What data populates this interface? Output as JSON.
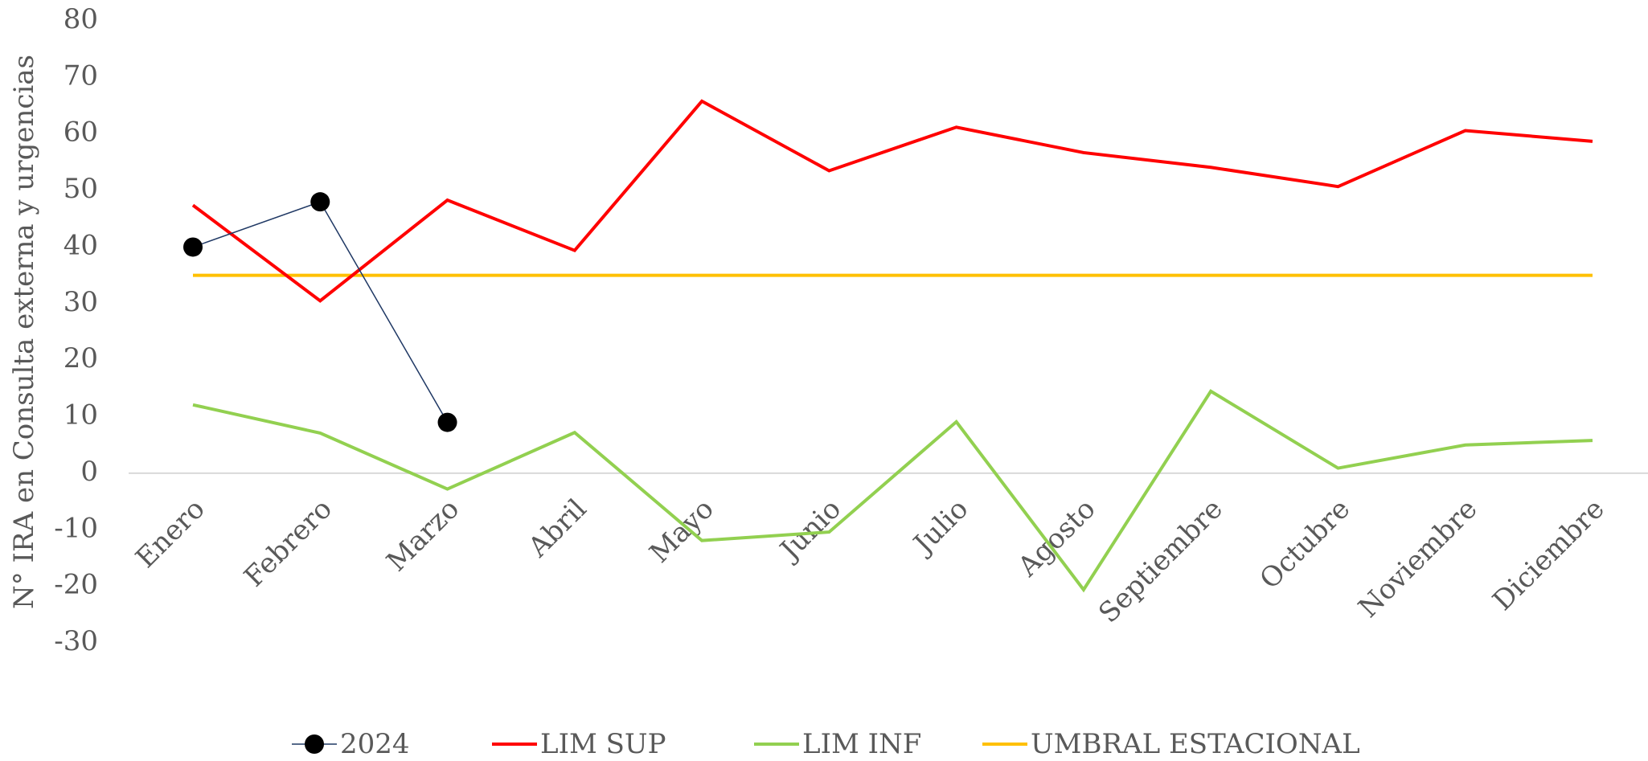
{
  "chart_data": {
    "type": "line",
    "y_axis_label": "N° IRA en Consulta externa y urgencias",
    "categories": [
      "Enero",
      "Febrero",
      "Marzo",
      "Abril",
      "Mayo",
      "Junio",
      "Julio",
      "Agosto",
      "Septiembre",
      "Octubre",
      "Noviembre",
      "Diciembre"
    ],
    "series": [
      {
        "name": "2024",
        "color": "#1f3864",
        "marker_color": "#000000",
        "values": [
          40,
          48,
          9,
          null,
          null,
          null,
          null,
          null,
          null,
          null,
          null,
          null
        ]
      },
      {
        "name": "LIM SUP",
        "color": "#ff0000",
        "values": [
          47.4,
          30.5,
          48.3,
          39.4,
          65.8,
          53.5,
          61.2,
          56.7,
          54.1,
          50.7,
          60.6,
          58.7
        ]
      },
      {
        "name": "LIM INF",
        "color": "#92d050",
        "values": [
          12.1,
          7.1,
          -2.8,
          7.2,
          -11.9,
          -10.4,
          9.1,
          -20.6,
          14.5,
          0.9,
          5.0,
          5.8
        ]
      },
      {
        "name": "UMBRAL ESTACIONAL",
        "color": "#ffc000",
        "values": [
          35,
          35,
          35,
          35,
          35,
          35,
          35,
          35,
          35,
          35,
          35,
          35
        ]
      }
    ],
    "ylim": [
      -30,
      80
    ],
    "yticks": [
      -30,
      -20,
      -10,
      0,
      10,
      20,
      30,
      40,
      50,
      60,
      70,
      80
    ],
    "legend": "bottom"
  }
}
